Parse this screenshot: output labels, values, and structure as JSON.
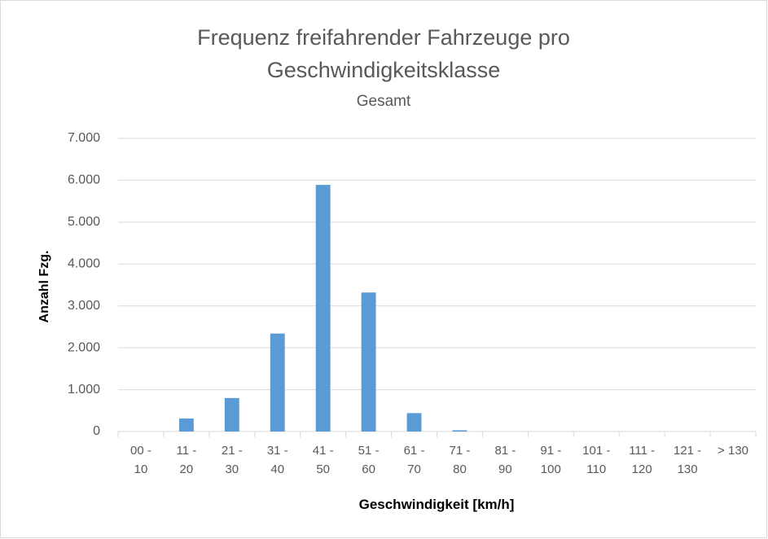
{
  "chart_data": {
    "type": "bar",
    "title": "Frequenz freifahrender Fahrzeuge pro Geschwindigkeitsklasse",
    "subtitle": "Gesamt",
    "x_label": "Geschwindigkeit [km/h]",
    "y_label": "Anzahl Fzg.",
    "categories": [
      "00 - 10",
      "11 - 20",
      "21 - 30",
      "31 - 40",
      "41 - 50",
      "51 - 60",
      "61 - 70",
      "71 - 80",
      "81 - 90",
      "91 - 100",
      "101 - 110",
      "111 - 120",
      "121 - 130",
      "> 130"
    ],
    "values": [
      0,
      310,
      800,
      2340,
      5890,
      3320,
      440,
      30,
      0,
      0,
      0,
      0,
      0,
      0
    ],
    "color": "#5b9bd5",
    "ylim": [
      0,
      7000
    ],
    "yticks": [
      0,
      {
        "value": 1000,
        "label": "1.000"
      },
      {
        "value": 2000,
        "label": "2.000"
      },
      {
        "value": 3000,
        "label": "3.000"
      },
      {
        "value": 4000,
        "label": "4.000"
      },
      {
        "value": 5000,
        "label": "5.000"
      },
      {
        "value": 6000,
        "label": "6.000"
      },
      {
        "value": 7000,
        "label": "7.000"
      }
    ],
    "grid": true
  }
}
